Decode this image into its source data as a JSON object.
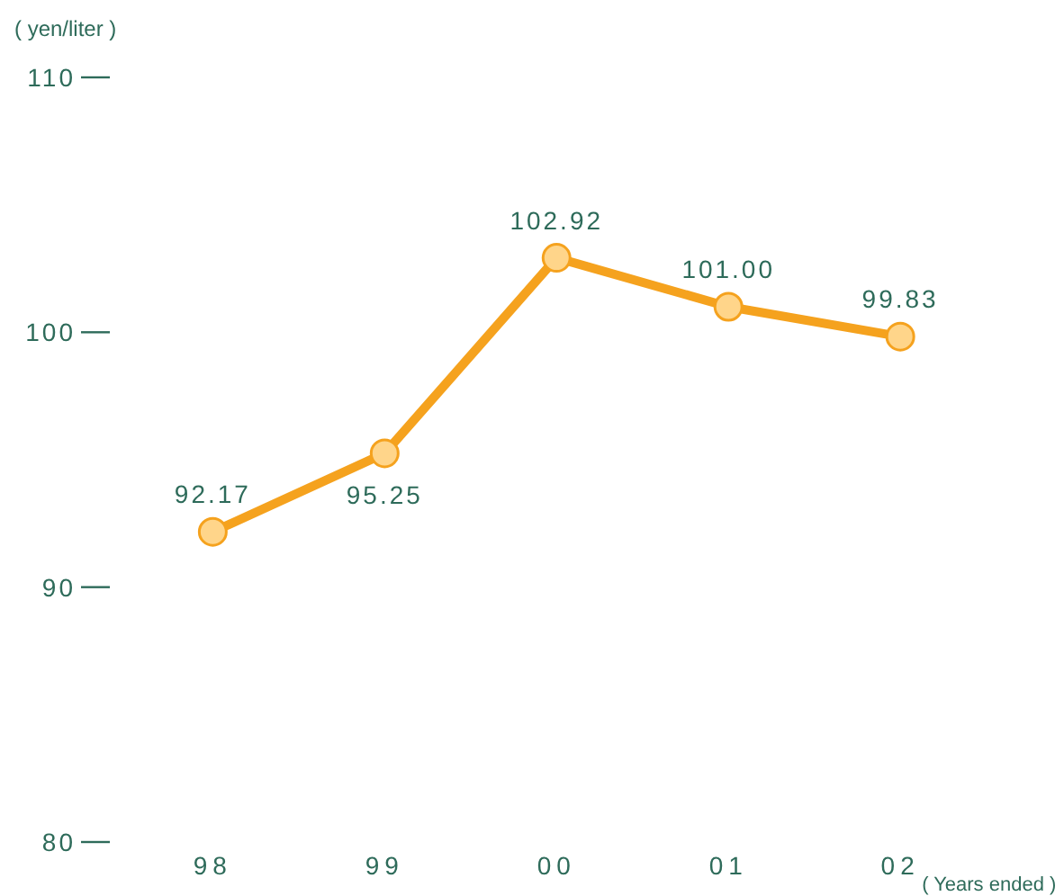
{
  "chart_data": {
    "type": "line",
    "ylabel": "( yen/liter )",
    "xlabel": "( Years ended )",
    "categories": [
      "98",
      "99",
      "00",
      "01",
      "02"
    ],
    "series": [
      {
        "color": "#f5a21e",
        "values": [
          92.17,
          95.25,
          102.92,
          101.0,
          99.83
        ]
      }
    ],
    "value_labels": [
      "92.17",
      "95.25",
      "102.92",
      "101.00",
      "99.83"
    ],
    "ylim": [
      80,
      110
    ],
    "yticks": [
      80,
      90,
      100,
      110
    ],
    "marker": "circle",
    "line_style": "solid"
  }
}
